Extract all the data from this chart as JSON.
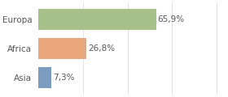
{
  "categories": [
    "Europa",
    "Africa",
    "Asia"
  ],
  "values": [
    65.9,
    26.8,
    7.3
  ],
  "bar_colors": [
    "#a8c08a",
    "#e8a87c",
    "#7b9bbf"
  ],
  "labels": [
    "65,9%",
    "26,8%",
    "7,3%"
  ],
  "xlim": [
    0,
    105
  ],
  "background_color": "#ffffff",
  "bar_height": 0.72,
  "label_fontsize": 7.5,
  "category_fontsize": 7.5,
  "grid_color": "#dddddd",
  "text_color": "#555555"
}
